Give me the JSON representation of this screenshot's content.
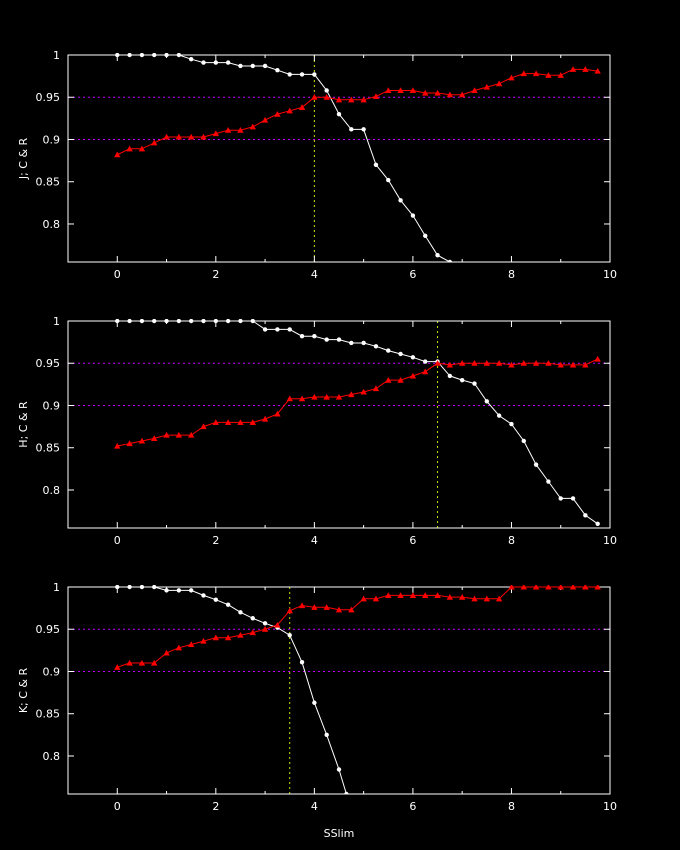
{
  "chart_data": [
    {
      "type": "line",
      "ylabel": "J; C & R",
      "xlim": [
        -1,
        10
      ],
      "ylim": [
        0.755,
        1.0
      ],
      "x_ticks": [
        0,
        2,
        4,
        6,
        8,
        10
      ],
      "y_ticks": [
        1,
        0.95,
        0.9,
        0.85,
        0.8
      ],
      "y_tick_labels": [
        "1",
        "0.95",
        "0.9",
        "0.85",
        "0.8"
      ],
      "reference_lines": [
        0.95,
        0.9
      ],
      "vline": 4.0,
      "colors": {
        "completeness": "#ffffff",
        "reliability": "#ff0000",
        "reference": "#c000ff",
        "vline": "#c8e000"
      },
      "series": [
        {
          "marker": "circle",
          "x": [
            0,
            0.25,
            0.5,
            0.75,
            1.0,
            1.25,
            1.5,
            1.75,
            2.0,
            2.25,
            2.5,
            2.75,
            3.0,
            3.25,
            3.5,
            3.75,
            4.0,
            4.25,
            4.5,
            4.75,
            5.0,
            5.25,
            5.5,
            5.75,
            6.0,
            6.25,
            6.5,
            6.75
          ],
          "y": [
            1.0,
            1.0,
            1.0,
            1.0,
            1.0,
            1.0,
            0.995,
            0.991,
            0.991,
            0.991,
            0.987,
            0.987,
            0.987,
            0.982,
            0.977,
            0.977,
            0.977,
            0.958,
            0.93,
            0.912,
            0.912,
            0.87,
            0.852,
            0.828,
            0.81,
            0.786,
            0.763,
            0.755
          ]
        },
        {
          "marker": "triangle",
          "x": [
            0,
            0.25,
            0.5,
            0.75,
            1.0,
            1.25,
            1.5,
            1.75,
            2.0,
            2.25,
            2.5,
            2.75,
            3.0,
            3.25,
            3.5,
            3.75,
            4.0,
            4.25,
            4.5,
            4.75,
            5.0,
            5.25,
            5.5,
            5.75,
            6.0,
            6.25,
            6.5,
            6.75,
            7.0,
            7.25,
            7.5,
            7.75,
            8.0,
            8.25,
            8.5,
            8.75,
            9.0,
            9.25,
            9.5,
            9.75
          ],
          "y": [
            0.882,
            0.889,
            0.889,
            0.896,
            0.903,
            0.903,
            0.903,
            0.903,
            0.907,
            0.911,
            0.911,
            0.915,
            0.923,
            0.93,
            0.934,
            0.938,
            0.95,
            0.95,
            0.947,
            0.947,
            0.947,
            0.951,
            0.958,
            0.958,
            0.958,
            0.955,
            0.955,
            0.953,
            0.953,
            0.958,
            0.962,
            0.966,
            0.973,
            0.978,
            0.978,
            0.976,
            0.976,
            0.983,
            0.983,
            0.981
          ]
        }
      ]
    },
    {
      "type": "line",
      "ylabel": "H; C & R",
      "xlim": [
        -1,
        10
      ],
      "ylim": [
        0.755,
        1.0
      ],
      "x_ticks": [
        0,
        2,
        4,
        6,
        8,
        10
      ],
      "y_ticks": [
        1,
        0.95,
        0.9,
        0.85,
        0.8
      ],
      "y_tick_labels": [
        "1",
        "0.95",
        "0.9",
        "0.85",
        "0.8"
      ],
      "reference_lines": [
        0.95,
        0.9
      ],
      "vline": 6.5,
      "colors": {
        "completeness": "#ffffff",
        "reliability": "#ff0000",
        "reference": "#c000ff",
        "vline": "#c8e000"
      },
      "series": [
        {
          "marker": "circle",
          "x": [
            0,
            0.25,
            0.5,
            0.75,
            1.0,
            1.25,
            1.5,
            1.75,
            2.0,
            2.25,
            2.5,
            2.75,
            3.0,
            3.25,
            3.5,
            3.75,
            4.0,
            4.25,
            4.5,
            4.75,
            5.0,
            5.25,
            5.5,
            5.75,
            6.0,
            6.25,
            6.5,
            6.75,
            7.0,
            7.25,
            7.5,
            7.75,
            8.0,
            8.25,
            8.5,
            8.75,
            9.0,
            9.25,
            9.5,
            9.75
          ],
          "y": [
            1.0,
            1.0,
            1.0,
            1.0,
            1.0,
            1.0,
            1.0,
            1.0,
            1.0,
            1.0,
            1.0,
            1.0,
            0.99,
            0.99,
            0.99,
            0.982,
            0.982,
            0.978,
            0.978,
            0.974,
            0.974,
            0.97,
            0.965,
            0.961,
            0.957,
            0.952,
            0.952,
            0.935,
            0.93,
            0.926,
            0.905,
            0.888,
            0.878,
            0.858,
            0.83,
            0.81,
            0.79,
            0.79,
            0.77,
            0.76
          ]
        },
        {
          "marker": "triangle",
          "x": [
            0,
            0.25,
            0.5,
            0.75,
            1.0,
            1.25,
            1.5,
            1.75,
            2.0,
            2.25,
            2.5,
            2.75,
            3.0,
            3.25,
            3.5,
            3.75,
            4.0,
            4.25,
            4.5,
            4.75,
            5.0,
            5.25,
            5.5,
            5.75,
            6.0,
            6.25,
            6.5,
            6.75,
            7.0,
            7.25,
            7.5,
            7.75,
            8.0,
            8.25,
            8.5,
            8.75,
            9.0,
            9.25,
            9.5,
            9.75
          ],
          "y": [
            0.852,
            0.855,
            0.858,
            0.861,
            0.865,
            0.865,
            0.865,
            0.875,
            0.88,
            0.88,
            0.88,
            0.88,
            0.884,
            0.89,
            0.908,
            0.908,
            0.91,
            0.91,
            0.91,
            0.913,
            0.916,
            0.92,
            0.93,
            0.93,
            0.935,
            0.94,
            0.95,
            0.948,
            0.95,
            0.95,
            0.95,
            0.95,
            0.948,
            0.95,
            0.95,
            0.95,
            0.948,
            0.948,
            0.948,
            0.955
          ]
        }
      ]
    },
    {
      "type": "line",
      "xlabel": "SSlim",
      "ylabel": "K; C & R",
      "xlim": [
        -1,
        10
      ],
      "ylim": [
        0.755,
        1.0
      ],
      "x_ticks": [
        0,
        2,
        4,
        6,
        8,
        10
      ],
      "y_ticks": [
        1,
        0.95,
        0.9,
        0.85,
        0.8
      ],
      "y_tick_labels": [
        "1",
        "0.95",
        "0.9",
        "0.85",
        "0.8"
      ],
      "reference_lines": [
        0.95,
        0.9
      ],
      "vline": 3.5,
      "colors": {
        "completeness": "#ffffff",
        "reliability": "#ff0000",
        "reference": "#c000ff",
        "vline": "#c8e000"
      },
      "series": [
        {
          "marker": "circle",
          "x": [
            0,
            0.25,
            0.5,
            0.75,
            1.0,
            1.25,
            1.5,
            1.75,
            2.0,
            2.25,
            2.5,
            2.75,
            3.0,
            3.25,
            3.5,
            3.75,
            4.0,
            4.25,
            4.5,
            4.65
          ],
          "y": [
            1.0,
            1.0,
            1.0,
            1.0,
            0.996,
            0.996,
            0.996,
            0.99,
            0.985,
            0.979,
            0.97,
            0.963,
            0.957,
            0.952,
            0.943,
            0.911,
            0.863,
            0.825,
            0.784,
            0.755
          ]
        },
        {
          "marker": "triangle",
          "x": [
            0,
            0.25,
            0.5,
            0.75,
            1.0,
            1.25,
            1.5,
            1.75,
            2.0,
            2.25,
            2.5,
            2.75,
            3.0,
            3.25,
            3.5,
            3.75,
            4.0,
            4.25,
            4.5,
            4.75,
            5.0,
            5.25,
            5.5,
            5.75,
            6.0,
            6.25,
            6.5,
            6.75,
            7.0,
            7.25,
            7.5,
            7.75,
            8.0,
            8.25,
            8.5,
            8.75,
            9.0,
            9.25,
            9.5,
            9.75
          ],
          "y": [
            0.905,
            0.91,
            0.91,
            0.91,
            0.922,
            0.928,
            0.932,
            0.936,
            0.94,
            0.94,
            0.943,
            0.946,
            0.95,
            0.955,
            0.972,
            0.978,
            0.976,
            0.976,
            0.973,
            0.973,
            0.986,
            0.986,
            0.99,
            0.99,
            0.99,
            0.99,
            0.99,
            0.988,
            0.988,
            0.986,
            0.986,
            0.986,
            1.0,
            1.0,
            1.0,
            1.0,
            1.0,
            1.0,
            1.0,
            1.0
          ]
        }
      ]
    }
  ]
}
